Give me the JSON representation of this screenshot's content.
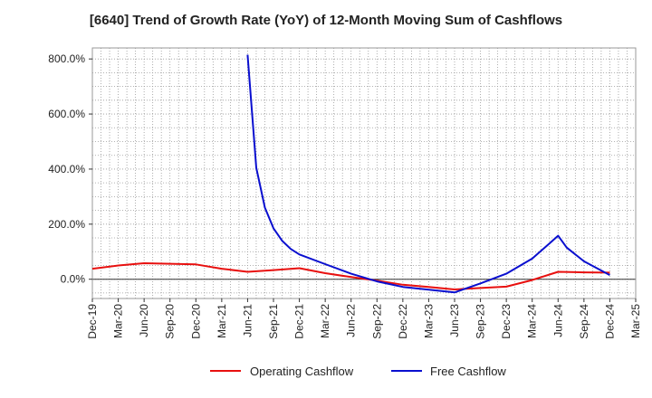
{
  "title": "[6640]  Trend of Growth Rate (YoY) of 12-Month Moving Sum of Cashflows",
  "chart_data": {
    "type": "line",
    "title": "[6640]  Trend of Growth Rate (YoY) of 12-Month Moving Sum of Cashflows",
    "x_ticks": [
      "Dec-19",
      "Mar-20",
      "Jun-20",
      "Sep-20",
      "Dec-20",
      "Mar-21",
      "Jun-21",
      "Sep-21",
      "Dec-21",
      "Mar-22",
      "Jun-22",
      "Sep-22",
      "Dec-22",
      "Mar-23",
      "Jun-23",
      "Sep-23",
      "Dec-23",
      "Mar-24",
      "Jun-24",
      "Sep-24",
      "Dec-24",
      "Mar-25"
    ],
    "y_ticks": [
      "0.0%",
      "200.0%",
      "400.0%",
      "600.0%",
      "800.0%"
    ],
    "ylim": [
      -70,
      840
    ],
    "grid": true,
    "legend_position": "bottom",
    "series": [
      {
        "name": "Operating Cashflow",
        "color": "#e8100f",
        "points": [
          [
            "Dec-19",
            38
          ],
          [
            "Mar-20",
            50
          ],
          [
            "Jun-20",
            58
          ],
          [
            "Sep-20",
            56
          ],
          [
            "Dec-20",
            54
          ],
          [
            "Mar-21",
            38
          ],
          [
            "Jun-21",
            27
          ],
          [
            "Sep-21",
            33
          ],
          [
            "Dec-21",
            40
          ],
          [
            "Mar-22",
            22
          ],
          [
            "Jun-22",
            8
          ],
          [
            "Sep-22",
            -5
          ],
          [
            "Dec-22",
            -20
          ],
          [
            "Mar-23",
            -28
          ],
          [
            "Jun-23",
            -37
          ],
          [
            "Sep-23",
            -32
          ],
          [
            "Dec-23",
            -27
          ],
          [
            "Mar-24",
            -3
          ],
          [
            "Jun-24",
            27
          ],
          [
            "Sep-24",
            25
          ],
          [
            "Dec-24",
            24
          ]
        ]
      },
      {
        "name": "Free Cashflow",
        "color": "#0a0fcf",
        "points": [
          [
            "Jun-21",
            815
          ],
          [
            "Jul-21",
            405
          ],
          [
            "Aug-21",
            260
          ],
          [
            "Sep-21",
            185
          ],
          [
            "Oct-21",
            140
          ],
          [
            "Nov-21",
            110
          ],
          [
            "Dec-21",
            90
          ],
          [
            "Mar-22",
            55
          ],
          [
            "Jun-22",
            20
          ],
          [
            "Sep-22",
            -8
          ],
          [
            "Dec-22",
            -28
          ],
          [
            "Mar-23",
            -38
          ],
          [
            "Jun-23",
            -48
          ],
          [
            "Sep-23",
            -15
          ],
          [
            "Dec-23",
            20
          ],
          [
            "Mar-24",
            75
          ],
          [
            "May-24",
            130
          ],
          [
            "Jun-24",
            158
          ],
          [
            "Jul-24",
            115
          ],
          [
            "Sep-24",
            65
          ],
          [
            "Dec-24",
            15
          ]
        ]
      }
    ]
  }
}
